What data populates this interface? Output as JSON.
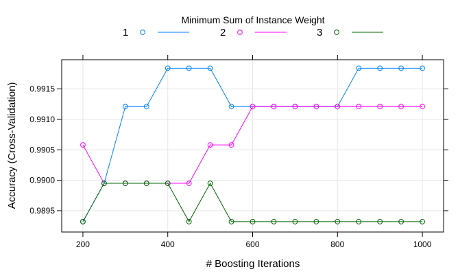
{
  "chart_data": {
    "type": "line",
    "legend_title": "Minimum Sum of Instance Weight",
    "legend_position": "top",
    "xlabel": "# Boosting Iterations",
    "ylabel": "Accuracy (Cross-Validation)",
    "xlim": [
      150,
      1050
    ],
    "ylim": [
      0.98915,
      0.99198
    ],
    "x_ticks": [
      200,
      400,
      600,
      800,
      1000
    ],
    "y_ticks": [
      0.9895,
      0.99,
      0.9905,
      0.991,
      0.9915
    ],
    "y_tick_labels": [
      "0.9895",
      "0.9900",
      "0.9905",
      "0.9910",
      "0.9915"
    ],
    "grid": true,
    "x": [
      200,
      250,
      300,
      350,
      400,
      450,
      500,
      550,
      600,
      650,
      700,
      750,
      800,
      850,
      900,
      950,
      1000
    ],
    "series": [
      {
        "name": "1",
        "color": "#0080ff",
        "values": [
          0.98932,
          0.98995,
          0.99121,
          0.99121,
          0.99184,
          0.99184,
          0.99184,
          0.99121,
          0.99121,
          0.99121,
          0.99121,
          0.99121,
          0.99121,
          0.99184,
          0.99184,
          0.99184,
          0.99184
        ]
      },
      {
        "name": "2",
        "color": "#ff00ff",
        "values": [
          0.99058,
          0.98995,
          0.98995,
          0.98995,
          0.98995,
          0.98995,
          0.99058,
          0.99058,
          0.99121,
          0.99121,
          0.99121,
          0.99121,
          0.99121,
          0.99121,
          0.99121,
          0.99121,
          0.99121
        ]
      },
      {
        "name": "3",
        "color": "#006400",
        "values": [
          0.98932,
          0.98995,
          0.98995,
          0.98995,
          0.98995,
          0.98932,
          0.98995,
          0.98932,
          0.98932,
          0.98932,
          0.98932,
          0.98932,
          0.98932,
          0.98932,
          0.98932,
          0.98932,
          0.98932
        ]
      }
    ]
  }
}
